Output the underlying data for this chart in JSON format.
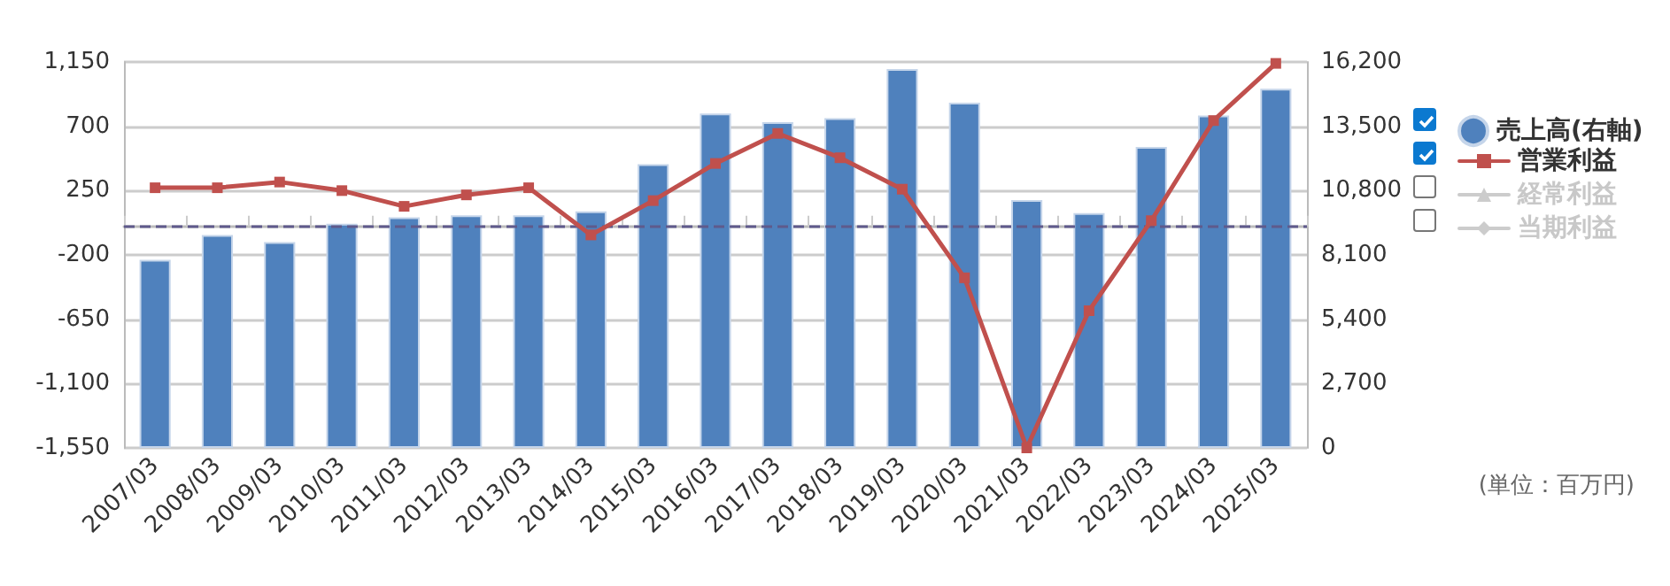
{
  "chart_data": {
    "type": "bar",
    "categories": [
      "2007/03",
      "2008/03",
      "2009/03",
      "2010/03",
      "2011/03",
      "2012/03",
      "2013/03",
      "2014/03",
      "2015/03",
      "2016/03",
      "2017/03",
      "2018/03",
      "2019/03",
      "2020/03",
      "2021/03",
      "2022/03",
      "2023/03",
      "2024/03",
      "2025/03"
    ],
    "series": [
      {
        "name": "売上高(右軸)",
        "axis": "y2",
        "color": "#4f81bd",
        "values": [
          7900,
          8940,
          8640,
          9410,
          9680,
          9760,
          9760,
          9930,
          11910,
          14040,
          13670,
          13840,
          15900,
          14490,
          10400,
          9860,
          12630,
          13950,
          15080
        ]
      },
      {
        "name": "営業利益",
        "type": "line",
        "axis": "y",
        "color": "#c0504d",
        "marker": "square",
        "values": [
          270,
          270,
          310,
          250,
          140,
          220,
          270,
          -60,
          180,
          440,
          650,
          480,
          260,
          -360,
          -1550,
          -590,
          40,
          740,
          1140
        ]
      },
      {
        "name": "経常利益",
        "type": "line",
        "axis": "y",
        "color": "#cccccc",
        "marker": "triangle",
        "values": [
          null,
          null,
          null,
          null,
          null,
          null,
          null,
          null,
          null,
          null,
          null,
          null,
          null,
          null,
          null,
          null,
          null,
          null,
          null
        ]
      },
      {
        "name": "当期利益",
        "type": "line",
        "axis": "y",
        "color": "#cccccc",
        "marker": "diamond",
        "values": [
          null,
          null,
          null,
          null,
          null,
          null,
          null,
          null,
          null,
          null,
          null,
          null,
          null,
          null,
          null,
          null,
          null,
          null,
          null
        ]
      }
    ],
    "ylim": [
      -1550,
      1150
    ],
    "yticks": [
      {
        "value": -1550,
        "label": "-1,550"
      },
      {
        "value": -1100,
        "label": "-1,100"
      },
      -650,
      -200,
      250,
      700,
      {
        "value": 1150,
        "label": "1,150"
      }
    ],
    "y2lim": [
      0,
      16200
    ],
    "y2ticks": [
      0,
      {
        "value": 2700,
        "label": "2,700"
      },
      {
        "value": 5400,
        "label": "5,400"
      },
      {
        "value": 8100,
        "label": "8,100"
      },
      {
        "value": 10800,
        "label": "10,800"
      },
      {
        "value": 13500,
        "label": "13,500"
      },
      {
        "value": 16200,
        "label": "16,200"
      }
    ],
    "ref_lines": [
      {
        "axis": "y",
        "value": 0,
        "color": "#5f5a8c",
        "line_style": "dashed"
      }
    ],
    "grid": "y",
    "legend": "right",
    "annotations": [
      "(単位：百万円)"
    ]
  }
}
